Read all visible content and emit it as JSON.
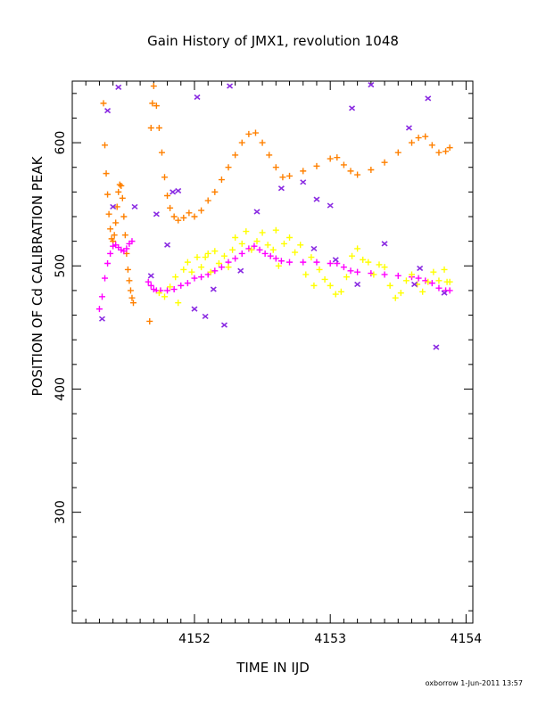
{
  "chart_data": {
    "type": "scatter",
    "title": "Gain History of JMX1, revolution 1048",
    "xlabel": "TIME IN IJD",
    "ylabel": "POSITION OF Cd CALIBRATION PEAK",
    "xlim": [
      4151.1,
      4154.05
    ],
    "ylim": [
      210,
      650
    ],
    "x_ticks": [
      "4152",
      "4153",
      "4154"
    ],
    "y_ticks": [
      "300",
      "400",
      "500",
      "600"
    ],
    "grid": false,
    "footer": "oxborrow   1-Jun-2011 13:57",
    "colors": {
      "orange": "#ff8000",
      "magenta": "#ff00ff",
      "yellow": "#ffff00",
      "purple": "#8a2be2"
    },
    "series": [
      {
        "marker": "plus",
        "color": "orange",
        "points": [
          [
            4151.33,
            632
          ],
          [
            4151.34,
            598
          ],
          [
            4151.35,
            575
          ],
          [
            4151.36,
            558
          ],
          [
            4151.37,
            542
          ],
          [
            4151.38,
            530
          ],
          [
            4151.39,
            522
          ],
          [
            4151.4,
            520
          ],
          [
            4151.41,
            525
          ],
          [
            4151.42,
            535
          ],
          [
            4151.43,
            548
          ],
          [
            4151.44,
            560
          ],
          [
            4151.45,
            566
          ],
          [
            4151.46,
            565
          ],
          [
            4151.47,
            555
          ],
          [
            4151.48,
            540
          ],
          [
            4151.49,
            525
          ],
          [
            4151.5,
            510
          ],
          [
            4151.51,
            497
          ],
          [
            4151.52,
            488
          ],
          [
            4151.53,
            480
          ],
          [
            4151.54,
            474
          ],
          [
            4151.55,
            470
          ],
          [
            4151.67,
            455
          ],
          [
            4151.68,
            612
          ],
          [
            4151.69,
            632
          ],
          [
            4151.7,
            646
          ],
          [
            4151.72,
            630
          ],
          [
            4151.74,
            612
          ],
          [
            4151.76,
            592
          ],
          [
            4151.78,
            572
          ],
          [
            4151.8,
            557
          ],
          [
            4151.82,
            547
          ],
          [
            4151.85,
            540
          ],
          [
            4151.88,
            537
          ],
          [
            4151.92,
            539
          ],
          [
            4151.96,
            543
          ],
          [
            4152.0,
            540
          ],
          [
            4152.05,
            545
          ],
          [
            4152.1,
            553
          ],
          [
            4152.15,
            560
          ],
          [
            4152.2,
            570
          ],
          [
            4152.25,
            580
          ],
          [
            4152.3,
            590
          ],
          [
            4152.35,
            600
          ],
          [
            4152.4,
            607
          ],
          [
            4152.45,
            608
          ],
          [
            4152.5,
            600
          ],
          [
            4152.55,
            590
          ],
          [
            4152.6,
            580
          ],
          [
            4152.65,
            572
          ],
          [
            4152.7,
            573
          ],
          [
            4152.8,
            577
          ],
          [
            4152.9,
            581
          ],
          [
            4153.0,
            587
          ],
          [
            4153.05,
            588
          ],
          [
            4153.1,
            582
          ],
          [
            4153.15,
            577
          ],
          [
            4153.2,
            574
          ],
          [
            4153.3,
            578
          ],
          [
            4153.4,
            584
          ],
          [
            4153.5,
            592
          ],
          [
            4153.6,
            600
          ],
          [
            4153.65,
            604
          ],
          [
            4153.7,
            605
          ],
          [
            4153.75,
            598
          ],
          [
            4153.8,
            592
          ],
          [
            4153.85,
            593
          ],
          [
            4153.88,
            596
          ]
        ]
      },
      {
        "marker": "plus",
        "color": "magenta",
        "points": [
          [
            4151.3,
            465
          ],
          [
            4151.32,
            475
          ],
          [
            4151.34,
            490
          ],
          [
            4151.36,
            502
          ],
          [
            4151.38,
            510
          ],
          [
            4151.4,
            516
          ],
          [
            4151.42,
            517
          ],
          [
            4151.44,
            515
          ],
          [
            4151.46,
            513
          ],
          [
            4151.48,
            512
          ],
          [
            4151.5,
            514
          ],
          [
            4151.52,
            518
          ],
          [
            4151.54,
            520
          ],
          [
            4151.66,
            487
          ],
          [
            4151.68,
            484
          ],
          [
            4151.7,
            481
          ],
          [
            4151.72,
            480
          ],
          [
            4151.75,
            480
          ],
          [
            4151.8,
            480
          ],
          [
            4151.85,
            481
          ],
          [
            4151.9,
            484
          ],
          [
            4151.95,
            486
          ],
          [
            4152.0,
            490
          ],
          [
            4152.05,
            491
          ],
          [
            4152.1,
            493
          ],
          [
            4152.15,
            496
          ],
          [
            4152.2,
            499
          ],
          [
            4152.25,
            503
          ],
          [
            4152.3,
            506
          ],
          [
            4152.35,
            510
          ],
          [
            4152.4,
            514
          ],
          [
            4152.44,
            516
          ],
          [
            4152.48,
            513
          ],
          [
            4152.52,
            510
          ],
          [
            4152.56,
            508
          ],
          [
            4152.6,
            506
          ],
          [
            4152.64,
            504
          ],
          [
            4152.7,
            503
          ],
          [
            4152.8,
            503
          ],
          [
            4152.9,
            503
          ],
          [
            4153.0,
            502
          ],
          [
            4153.05,
            502
          ],
          [
            4153.1,
            499
          ],
          [
            4153.15,
            496
          ],
          [
            4153.2,
            495
          ],
          [
            4153.3,
            494
          ],
          [
            4153.4,
            493
          ],
          [
            4153.5,
            492
          ],
          [
            4153.6,
            491
          ],
          [
            4153.65,
            490
          ],
          [
            4153.7,
            488
          ],
          [
            4153.75,
            486
          ],
          [
            4153.8,
            482
          ],
          [
            4153.85,
            480
          ],
          [
            4153.88,
            480
          ]
        ]
      },
      {
        "marker": "plus",
        "color": "yellow",
        "points": [
          [
            4151.74,
            478
          ],
          [
            4151.78,
            475
          ],
          [
            4151.82,
            483
          ],
          [
            4151.86,
            491
          ],
          [
            4151.88,
            470
          ],
          [
            4151.92,
            497
          ],
          [
            4151.95,
            503
          ],
          [
            4151.98,
            495
          ],
          [
            4152.02,
            507
          ],
          [
            4152.05,
            499
          ],
          [
            4152.08,
            507
          ],
          [
            4152.1,
            510
          ],
          [
            4152.12,
            495
          ],
          [
            4152.15,
            512
          ],
          [
            4152.18,
            502
          ],
          [
            4152.22,
            508
          ],
          [
            4152.25,
            499
          ],
          [
            4152.28,
            513
          ],
          [
            4152.3,
            523
          ],
          [
            4152.35,
            518
          ],
          [
            4152.38,
            528
          ],
          [
            4152.42,
            513
          ],
          [
            4152.46,
            520
          ],
          [
            4152.5,
            527
          ],
          [
            4152.54,
            517
          ],
          [
            4152.58,
            513
          ],
          [
            4152.6,
            529
          ],
          [
            4152.62,
            500
          ],
          [
            4152.66,
            518
          ],
          [
            4152.7,
            523
          ],
          [
            4152.74,
            511
          ],
          [
            4152.78,
            517
          ],
          [
            4152.82,
            493
          ],
          [
            4152.86,
            507
          ],
          [
            4152.88,
            484
          ],
          [
            4152.92,
            497
          ],
          [
            4152.96,
            489
          ],
          [
            4153.0,
            484
          ],
          [
            4153.04,
            477
          ],
          [
            4153.08,
            479
          ],
          [
            4153.12,
            491
          ],
          [
            4153.16,
            508
          ],
          [
            4153.2,
            514
          ],
          [
            4153.24,
            505
          ],
          [
            4153.28,
            503
          ],
          [
            4153.32,
            493
          ],
          [
            4153.36,
            501
          ],
          [
            4153.4,
            499
          ],
          [
            4153.44,
            484
          ],
          [
            4153.48,
            474
          ],
          [
            4153.52,
            478
          ],
          [
            4153.56,
            488
          ],
          [
            4153.6,
            493
          ],
          [
            4153.64,
            485
          ],
          [
            4153.68,
            479
          ],
          [
            4153.72,
            487
          ],
          [
            4153.76,
            495
          ],
          [
            4153.8,
            488
          ],
          [
            4153.84,
            497
          ],
          [
            4153.86,
            487
          ],
          [
            4153.88,
            487
          ]
        ]
      },
      {
        "marker": "x",
        "color": "purple",
        "points": [
          [
            4151.32,
            457
          ],
          [
            4151.36,
            626
          ],
          [
            4151.4,
            548
          ],
          [
            4151.44,
            645
          ],
          [
            4151.56,
            548
          ],
          [
            4151.68,
            492
          ],
          [
            4151.72,
            542
          ],
          [
            4151.8,
            517
          ],
          [
            4151.84,
            560
          ],
          [
            4151.88,
            561
          ],
          [
            4152.0,
            465
          ],
          [
            4152.02,
            637
          ],
          [
            4152.08,
            459
          ],
          [
            4152.14,
            481
          ],
          [
            4152.22,
            452
          ],
          [
            4152.26,
            646
          ],
          [
            4152.34,
            496
          ],
          [
            4152.46,
            544
          ],
          [
            4152.64,
            563
          ],
          [
            4152.8,
            568
          ],
          [
            4152.88,
            514
          ],
          [
            4152.9,
            554
          ],
          [
            4153.0,
            549
          ],
          [
            4153.04,
            505
          ],
          [
            4153.16,
            628
          ],
          [
            4153.2,
            485
          ],
          [
            4153.3,
            647
          ],
          [
            4153.4,
            518
          ],
          [
            4153.58,
            612
          ],
          [
            4153.62,
            485
          ],
          [
            4153.66,
            498
          ],
          [
            4153.72,
            636
          ],
          [
            4153.78,
            434
          ],
          [
            4153.84,
            478
          ]
        ]
      }
    ]
  }
}
